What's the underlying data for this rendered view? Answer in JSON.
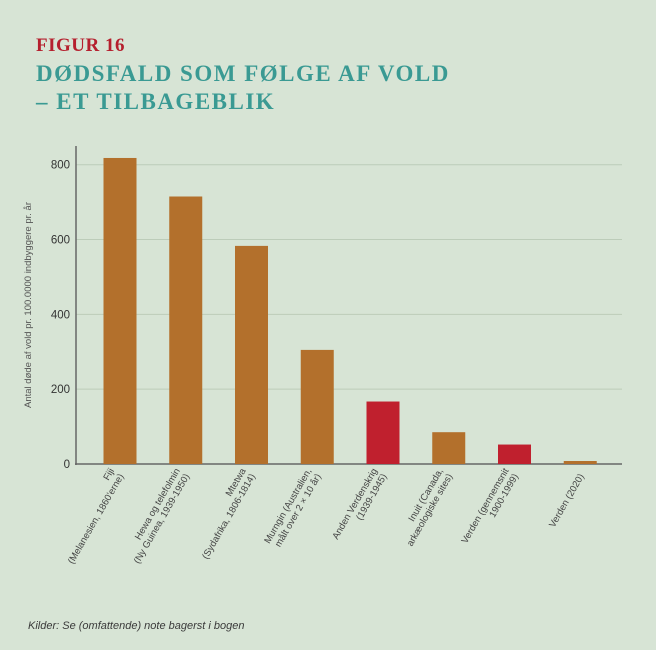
{
  "figure_label": "FIGUR 16",
  "title_line1": "DØDSFALD SOM FØLGE AF VOLD",
  "title_line2": "– ET TILBAGEBLIK",
  "source_note": "Kilder: Se (omfattende) note bagerst i bogen",
  "colors": {
    "background": "#d7e4d5",
    "bar_default": "#b3702c",
    "bar_highlight": "#c0202e",
    "title": "#3a9a93",
    "figure_label": "#b5202e",
    "grid": "#bcccb9"
  },
  "chart_data": {
    "type": "bar",
    "ylabel": "Antal døde af vold pr. 100.0000 indbyggere pr. år",
    "xlabel": "",
    "ylim": [
      0,
      850
    ],
    "yticks": [
      0,
      200,
      400,
      600,
      800
    ],
    "grid": true,
    "categories": [
      [
        "Fiji",
        "(Melanesien, 1860'erne)"
      ],
      [
        "Hewa og telefolmin",
        "(Ny Guinea, 1939-1950)"
      ],
      [
        "Mtetwa",
        "(Sydafrika, 1806-1814)"
      ],
      [
        "Murngin (Australien,",
        "målt over 2 × 10 år)"
      ],
      [
        "Anden Verdenskrig",
        "(1939-1945)"
      ],
      [
        "Inuit (Canada,",
        "arkæologiske sites)"
      ],
      [
        "Verden (gennemsnit",
        "1900-1999)"
      ],
      [
        "Verden (2020)"
      ]
    ],
    "values": [
      818,
      715,
      583,
      305,
      167,
      85,
      52,
      8
    ],
    "highlight": [
      false,
      false,
      false,
      false,
      true,
      false,
      true,
      false
    ]
  }
}
